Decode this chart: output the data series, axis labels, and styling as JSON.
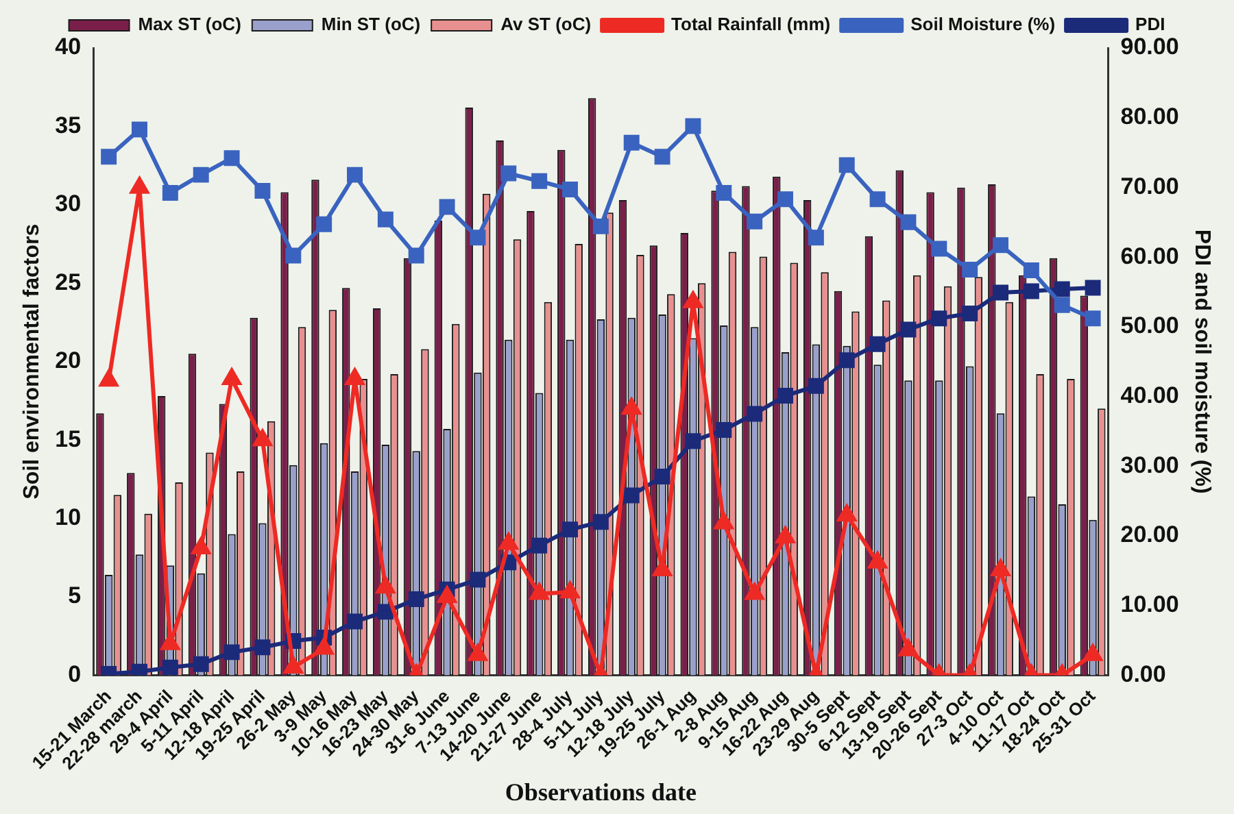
{
  "chart_data": {
    "type": "bar",
    "xlabel": "Observations date",
    "ylabel": "Soil environmental factors",
    "y2label": "PDI and soil moisture (%)",
    "categories": [
      "15-21 March",
      "22-28 march",
      "29-4 April",
      "5-11 April",
      "12-18 April",
      "19-25 April",
      "26-2 May",
      "3-9 May",
      "10-16 May",
      "16-23 May",
      "24-30 May",
      "31-6 June",
      "7-13 June",
      "14-20 June",
      "21-27 June",
      "28-4 July",
      "5-11 July",
      "12-18 July",
      "19-25 July",
      "26-1 Aug",
      "2-8 Aug",
      "9-15 Aug",
      "16-22 Aug",
      "23-29 Aug",
      "30-5 Sept",
      "6-12 Sept",
      "13-19 Sept",
      "20-26 Sept",
      "27-3 Oct",
      "4-10 Oct",
      "11-17 Oct",
      "18-24 Oct",
      "25-31 Oct"
    ],
    "series": [
      {
        "name": "Max ST (oC)",
        "color": "#7a1f4a",
        "values": [
          16.7,
          12.9,
          17.8,
          20.5,
          17.3,
          22.8,
          30.8,
          31.6,
          24.7,
          23.4,
          26.6,
          29.0,
          36.2,
          34.1,
          29.6,
          33.5,
          36.8,
          30.3,
          27.4,
          28.2,
          30.9,
          31.2,
          31.8,
          30.3,
          24.5,
          28.0,
          32.2,
          30.8,
          31.1,
          31.3,
          25.5,
          26.6,
          24.2
        ]
      },
      {
        "name": "Min ST (oC)",
        "color": "#9aa0cc",
        "values": [
          6.4,
          7.7,
          7.0,
          6.5,
          9.0,
          9.7,
          13.4,
          14.8,
          13.0,
          14.7,
          14.3,
          15.7,
          19.3,
          21.4,
          18.0,
          21.4,
          22.7,
          22.8,
          23.0,
          21.5,
          22.3,
          22.2,
          20.6,
          21.1,
          21.0,
          19.8,
          18.8,
          18.8,
          19.7,
          16.7,
          11.4,
          10.9,
          9.9
        ]
      },
      {
        "name": "Av ST (oC)",
        "color": "#e89090",
        "values": [
          11.5,
          10.3,
          12.3,
          14.2,
          13.0,
          16.2,
          22.2,
          23.3,
          18.9,
          19.2,
          20.8,
          22.4,
          30.7,
          27.8,
          23.8,
          27.5,
          29.5,
          26.8,
          24.3,
          25.0,
          27.0,
          26.7,
          26.3,
          25.7,
          23.2,
          23.9,
          25.5,
          24.8,
          25.4,
          23.8,
          19.2,
          18.9,
          17.0
        ]
      },
      {
        "name": "Total Rainfall (mm)",
        "type": "line",
        "marker": "triangle",
        "color": "#ee2a24",
        "values": [
          18.8,
          31.1,
          2.0,
          8.1,
          18.9,
          15.0,
          0.5,
          1.7,
          18.9,
          5.6,
          0,
          5.0,
          1.3,
          8.4,
          5.2,
          5.3,
          0,
          17.0,
          6.7,
          23.8,
          9.7,
          5.2,
          8.8,
          0,
          10.2,
          7.2,
          1.6,
          0,
          0,
          6.7,
          0,
          0,
          1.3
        ]
      },
      {
        "name": "Soil Moisture (%)",
        "type": "line",
        "marker": "square",
        "axis": "y2",
        "color": "#3a63c0",
        "values": [
          74.4,
          78.3,
          69.2,
          71.8,
          74.2,
          69.5,
          60.2,
          64.7,
          71.8,
          65.4,
          60.2,
          67.2,
          62.8,
          72.0,
          70.9,
          69.7,
          64.4,
          76.4,
          74.4,
          78.8,
          69.2,
          65.1,
          68.3,
          62.8,
          73.2,
          68.3,
          65.0,
          61.2,
          58.2,
          61.7,
          58.1,
          53.1,
          51.2
        ]
      },
      {
        "name": "PDI",
        "type": "line",
        "marker": "square",
        "axis": "y2",
        "color": "#1c2a7a",
        "values": [
          0.2,
          0.5,
          1.1,
          1.6,
          3.3,
          4.0,
          4.9,
          5.4,
          7.7,
          9.1,
          10.9,
          12.3,
          13.7,
          16.2,
          18.6,
          20.9,
          22.0,
          25.8,
          28.5,
          33.6,
          35.2,
          37.5,
          40.1,
          41.5,
          45.2,
          47.5,
          49.6,
          51.2,
          51.9,
          54.9,
          55.1,
          55.4,
          55.6
        ]
      }
    ],
    "ylim": [
      0,
      40
    ],
    "yticks": [
      0,
      5,
      10,
      15,
      20,
      25,
      30,
      35,
      40
    ],
    "y2lim": [
      0,
      90
    ],
    "y2ticks": [
      {
        "value": 0,
        "label": "0.00"
      },
      {
        "value": 10,
        "label": "10.00"
      },
      {
        "value": 20,
        "label": "20.00"
      },
      {
        "value": 30,
        "label": "30.00"
      },
      {
        "value": 40,
        "label": "40.00"
      },
      {
        "value": 50,
        "label": "50.00"
      },
      {
        "value": 60,
        "label": "60.00"
      },
      {
        "value": 70,
        "label": "70.00"
      },
      {
        "value": 80,
        "label": "80.00"
      },
      {
        "value": 90,
        "label": "90.00"
      }
    ],
    "legend": "top",
    "grid": false
  }
}
